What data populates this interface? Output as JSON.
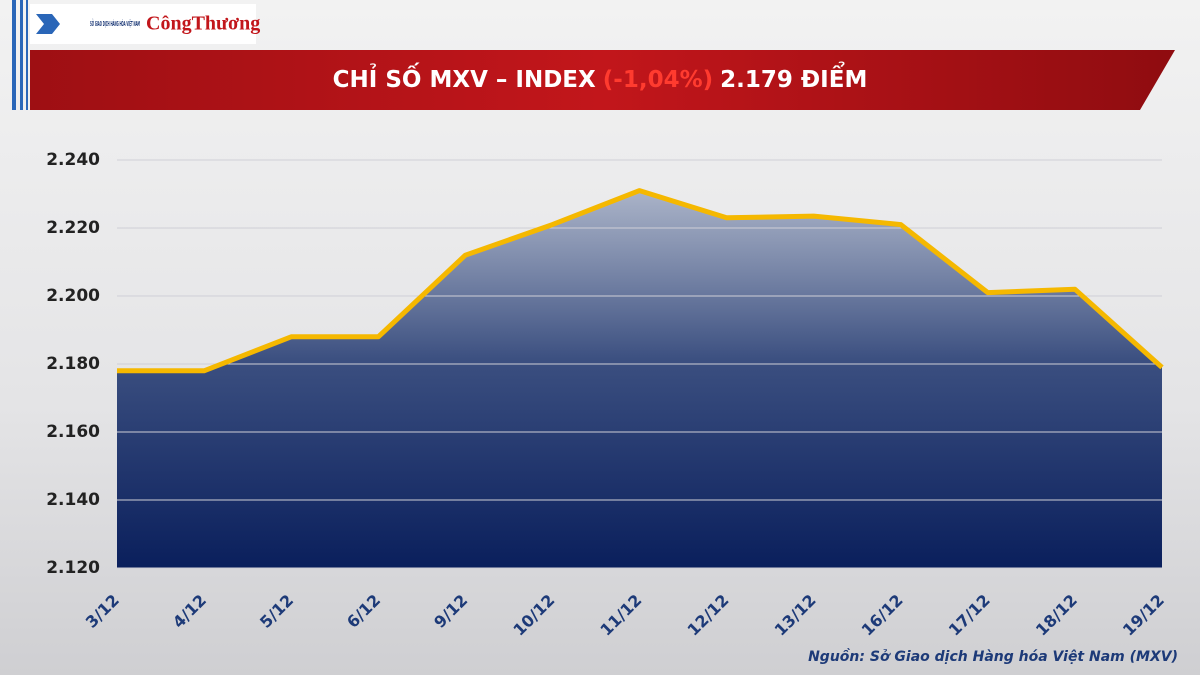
{
  "chart_data": {
    "type": "area",
    "logos": {
      "exchange": "SỞ GIAO DỊCH HÀNG HÓA VIỆT NAM",
      "newspaper": "CôngThương"
    },
    "title": "CHỈ SỐ MXV – INDEX",
    "title_change": "(-1,04%)",
    "title_value": "2.179 ĐIỂM",
    "source": "Nguồn: Sở Giao dịch Hàng hóa Việt Nam (MXV)",
    "categories": [
      "3/12",
      "4/12",
      "5/12",
      "6/12",
      "9/12",
      "10/12",
      "11/12",
      "12/12",
      "13/12",
      "16/12",
      "17/12",
      "18/12",
      "19/12"
    ],
    "series": [
      {
        "name": "MXV-Index",
        "color": "#f5b800",
        "values": [
          2178,
          2178,
          2188,
          2188,
          2212,
          2221,
          2231,
          2223,
          2223.5,
          2221,
          2201,
          2202,
          2179
        ]
      }
    ],
    "ylim": [
      2120,
      2240
    ],
    "yticks": [
      {
        "value": 2120,
        "label": "2.120"
      },
      {
        "value": 2140,
        "label": "2.140"
      },
      {
        "value": 2160,
        "label": "2.160"
      },
      {
        "value": 2180,
        "label": "2.180"
      },
      {
        "value": 2200,
        "label": "2.200"
      },
      {
        "value": 2220,
        "label": "2.220"
      },
      {
        "value": 2240,
        "label": "2.240"
      }
    ],
    "grid": true
  }
}
